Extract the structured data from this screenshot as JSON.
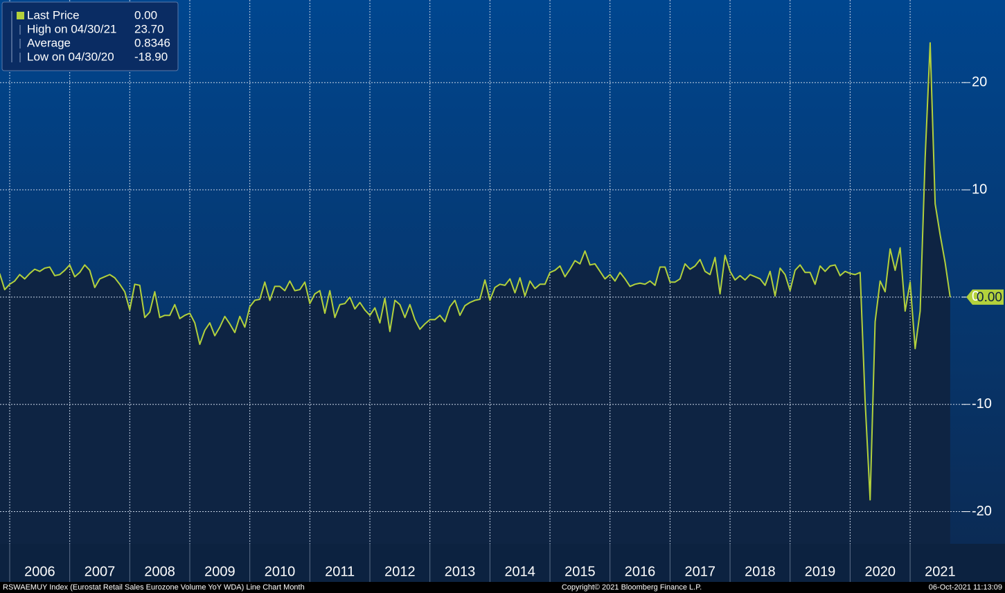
{
  "chart_data": {
    "type": "line",
    "legend_stats": [
      {
        "label": "Last Price",
        "value": "0.00"
      },
      {
        "label": "High on 04/30/21",
        "value": "23.70"
      },
      {
        "label": "Average",
        "value": "0.8346"
      },
      {
        "label": "Low on 04/30/20",
        "value": "-18.90"
      }
    ],
    "year_labels": [
      "2006",
      "2007",
      "2008",
      "2009",
      "2010",
      "2011",
      "2012",
      "2013",
      "2014",
      "2015",
      "2016",
      "2017",
      "2018",
      "2019",
      "2020",
      "2021"
    ],
    "series": [
      {
        "name": "Last Price",
        "color": "#b3d13c",
        "x": [
          "2005-10",
          "2005-11",
          "2005-12",
          "2006-01",
          "2006-02",
          "2006-03",
          "2006-04",
          "2006-05",
          "2006-06",
          "2006-07",
          "2006-08",
          "2006-09",
          "2006-10",
          "2006-11",
          "2006-12",
          "2007-01",
          "2007-02",
          "2007-03",
          "2007-04",
          "2007-05",
          "2007-06",
          "2007-07",
          "2007-08",
          "2007-09",
          "2007-10",
          "2007-11",
          "2007-12",
          "2008-01",
          "2008-02",
          "2008-03",
          "2008-04",
          "2008-05",
          "2008-06",
          "2008-07",
          "2008-08",
          "2008-09",
          "2008-10",
          "2008-11",
          "2008-12",
          "2009-01",
          "2009-02",
          "2009-03",
          "2009-04",
          "2009-05",
          "2009-06",
          "2009-07",
          "2009-08",
          "2009-09",
          "2009-10",
          "2009-11",
          "2009-12",
          "2010-01",
          "2010-02",
          "2010-03",
          "2010-04",
          "2010-05",
          "2010-06",
          "2010-07",
          "2010-08",
          "2010-09",
          "2010-10",
          "2010-11",
          "2010-12",
          "2011-01",
          "2011-02",
          "2011-03",
          "2011-04",
          "2011-05",
          "2011-06",
          "2011-07",
          "2011-08",
          "2011-09",
          "2011-10",
          "2011-11",
          "2011-12",
          "2012-01",
          "2012-02",
          "2012-03",
          "2012-04",
          "2012-05",
          "2012-06",
          "2012-07",
          "2012-08",
          "2012-09",
          "2012-10",
          "2012-11",
          "2012-12",
          "2013-01",
          "2013-02",
          "2013-03",
          "2013-04",
          "2013-05",
          "2013-06",
          "2013-07",
          "2013-08",
          "2013-09",
          "2013-10",
          "2013-11",
          "2013-12",
          "2014-01",
          "2014-02",
          "2014-03",
          "2014-04",
          "2014-05",
          "2014-06",
          "2014-07",
          "2014-08",
          "2014-09",
          "2014-10",
          "2014-11",
          "2014-12",
          "2015-01",
          "2015-02",
          "2015-03",
          "2015-04",
          "2015-05",
          "2015-06",
          "2015-07",
          "2015-08",
          "2015-09",
          "2015-10",
          "2015-11",
          "2015-12",
          "2016-01",
          "2016-02",
          "2016-03",
          "2016-04",
          "2016-05",
          "2016-06",
          "2016-07",
          "2016-08",
          "2016-09",
          "2016-10",
          "2016-11",
          "2016-12",
          "2017-01",
          "2017-02",
          "2017-03",
          "2017-04",
          "2017-05",
          "2017-06",
          "2017-07",
          "2017-08",
          "2017-09",
          "2017-10",
          "2017-11",
          "2017-12",
          "2018-01",
          "2018-02",
          "2018-03",
          "2018-04",
          "2018-05",
          "2018-06",
          "2018-07",
          "2018-08",
          "2018-09",
          "2018-10",
          "2018-11",
          "2018-12",
          "2019-01",
          "2019-02",
          "2019-03",
          "2019-04",
          "2019-05",
          "2019-06",
          "2019-07",
          "2019-08",
          "2019-09",
          "2019-10",
          "2019-11",
          "2019-12",
          "2020-01",
          "2020-02",
          "2020-03",
          "2020-04",
          "2020-05",
          "2020-06",
          "2020-07",
          "2020-08",
          "2020-09",
          "2020-10",
          "2020-11",
          "2020-12",
          "2021-01",
          "2021-02",
          "2021-03",
          "2021-04",
          "2021-05",
          "2021-06",
          "2021-07",
          "2021-08"
        ],
        "values": [
          2.2,
          0.7,
          1.2,
          1.5,
          2.1,
          1.7,
          2.2,
          2.6,
          2.4,
          2.7,
          2.8,
          2.0,
          2.1,
          2.5,
          3.0,
          1.9,
          2.3,
          3.0,
          2.5,
          0.9,
          1.7,
          1.9,
          2.1,
          1.8,
          1.2,
          0.5,
          -1.2,
          1.2,
          1.1,
          -1.9,
          -1.4,
          0.5,
          -1.9,
          -1.7,
          -1.7,
          -0.7,
          -2.0,
          -1.7,
          -1.5,
          -2.4,
          -4.4,
          -3.1,
          -2.4,
          -3.6,
          -2.8,
          -1.8,
          -2.5,
          -3.3,
          -1.8,
          -2.8,
          -0.9,
          -0.3,
          -0.2,
          1.4,
          -0.3,
          1.0,
          1.0,
          0.6,
          1.5,
          0.6,
          0.7,
          1.4,
          -0.6,
          0.3,
          0.6,
          -1.5,
          0.6,
          -1.9,
          -0.7,
          -0.6,
          0.0,
          -1.1,
          -0.5,
          -1.2,
          -1.7,
          -1.0,
          -2.4,
          -0.1,
          -3.2,
          -0.3,
          -0.7,
          -1.9,
          -0.7,
          -2.1,
          -3.0,
          -2.5,
          -2.1,
          -2.1,
          -1.7,
          -2.3,
          -0.9,
          -0.3,
          -1.7,
          -0.8,
          -0.5,
          -0.3,
          -0.2,
          1.6,
          -0.3,
          0.9,
          1.2,
          1.1,
          1.7,
          0.4,
          1.8,
          0.1,
          1.5,
          0.8,
          1.2,
          1.2,
          2.3,
          2.5,
          2.9,
          1.9,
          2.6,
          3.4,
          3.1,
          4.3,
          3.0,
          3.1,
          2.4,
          1.7,
          2.1,
          1.5,
          2.3,
          1.7,
          1.0,
          1.2,
          1.3,
          1.2,
          1.5,
          1.1,
          2.8,
          2.8,
          1.4,
          1.4,
          1.7,
          3.1,
          2.6,
          2.9,
          3.5,
          2.4,
          2.1,
          3.7,
          0.3,
          3.9,
          2.4,
          1.6,
          2.0,
          1.6,
          2.1,
          1.9,
          1.7,
          1.1,
          2.4,
          0.1,
          2.7,
          2.1,
          0.6,
          2.5,
          3.0,
          2.3,
          2.3,
          1.2,
          2.9,
          2.4,
          2.9,
          3.0,
          2.0,
          2.4,
          2.2,
          2.1,
          2.3,
          -9.7,
          -18.9,
          -2.3,
          1.5,
          0.5,
          4.5,
          2.5,
          4.6,
          -1.3,
          1.4,
          -4.8,
          -1.3,
          13.0,
          23.7,
          8.7,
          5.8,
          3.2,
          0.0
        ]
      }
    ],
    "last_price_tag": "0.00",
    "ylim": [
      -23.0,
      27.7
    ],
    "yticks": [
      20,
      10,
      0,
      -10,
      -20
    ],
    "grid": true,
    "source": "RSWAEMUY Index (Eurostat Retail Sales Eurozone Volume YoY WDA) Line Chart  Month",
    "copyright": "Copyright© 2021 Bloomberg Finance L.P.",
    "timestamp": "06-Oct-2021 11:13:09"
  }
}
